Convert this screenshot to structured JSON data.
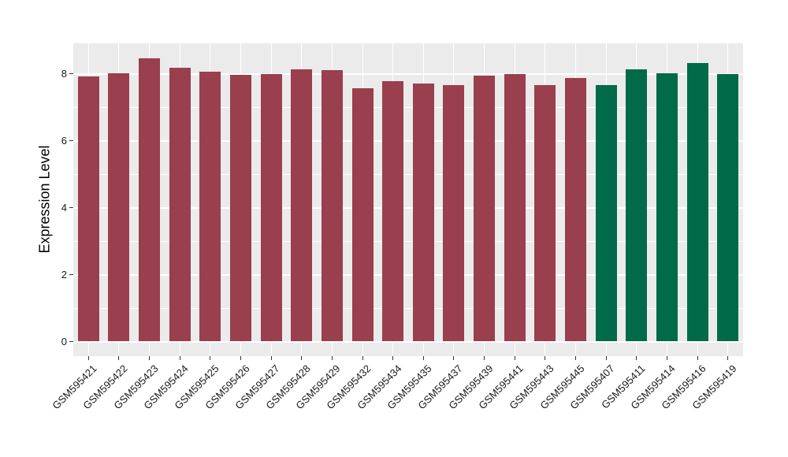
{
  "chart_data": {
    "type": "bar",
    "title": "",
    "xlabel": "",
    "ylabel": "Expression Level",
    "categories": [
      "GSM595421",
      "GSM595422",
      "GSM595423",
      "GSM595424",
      "GSM595425",
      "GSM595426",
      "GSM595427",
      "GSM595428",
      "GSM595429",
      "GSM595432",
      "GSM595434",
      "GSM595435",
      "GSM595437",
      "GSM595439",
      "GSM595441",
      "GSM595443",
      "GSM595445",
      "GSM595407",
      "GSM595411",
      "GSM595414",
      "GSM595416",
      "GSM595419"
    ],
    "values": [
      7.92,
      8.02,
      8.47,
      8.18,
      8.08,
      7.98,
      8.01,
      8.13,
      8.12,
      7.58,
      7.79,
      7.72,
      7.68,
      7.96,
      8.0,
      7.68,
      7.87,
      7.66,
      8.13,
      8.03,
      8.32,
      7.99
    ],
    "groups": [
      "g1",
      "g1",
      "g1",
      "g1",
      "g1",
      "g1",
      "g1",
      "g1",
      "g1",
      "g1",
      "g1",
      "g1",
      "g1",
      "g1",
      "g1",
      "g1",
      "g1",
      "g2",
      "g2",
      "g2",
      "g2",
      "g2"
    ],
    "group_colors": {
      "g1": "#993F4D",
      "g2": "#016A48"
    },
    "yticks": [
      0,
      2,
      4,
      6,
      8
    ],
    "ytick_labels": [
      "0",
      "2",
      "4",
      "6",
      "8"
    ],
    "minor_yticks": [
      1,
      3,
      5,
      7
    ],
    "ylim": [
      0,
      8.92
    ],
    "grid": true,
    "legend": false,
    "panel_bg": "#EBEBEB",
    "grid_color": "#FFFFFF",
    "axis_text_color": "#1A1A1A",
    "tick_color": "#333333"
  }
}
